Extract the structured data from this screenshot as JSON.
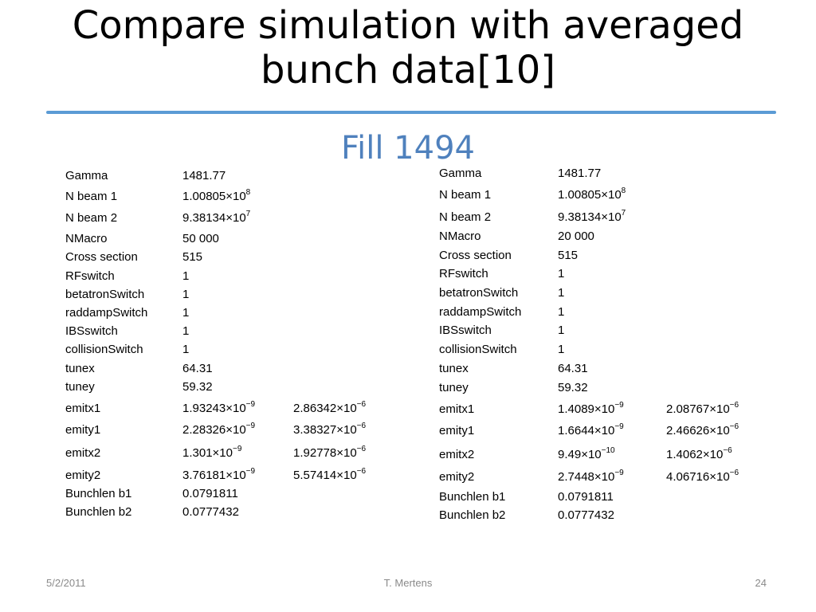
{
  "slide": {
    "title_line1": "Compare simulation with averaged",
    "title_line2": "bunch data[10]",
    "subtitle": "Fill 1494"
  },
  "left_table": [
    {
      "label": "Gamma",
      "v1": "1481.77",
      "v1_sup": "",
      "v2": "",
      "v2_sup": ""
    },
    {
      "label": "N beam 1",
      "v1": "1.00805×10",
      "v1_sup": "8",
      "v2": "",
      "v2_sup": ""
    },
    {
      "label": "N beam 2",
      "v1": "9.38134×10",
      "v1_sup": "7",
      "v2": "",
      "v2_sup": ""
    },
    {
      "label": "NMacro",
      "v1": "50 000",
      "v1_sup": "",
      "v2": "",
      "v2_sup": ""
    },
    {
      "label": "Cross section",
      "v1": "515",
      "v1_sup": "",
      "v2": "",
      "v2_sup": ""
    },
    {
      "label": "RFswitch",
      "v1": "1",
      "v1_sup": "",
      "v2": "",
      "v2_sup": ""
    },
    {
      "label": "betatronSwitch",
      "v1": "1",
      "v1_sup": "",
      "v2": "",
      "v2_sup": ""
    },
    {
      "label": "raddampSwitch",
      "v1": "1",
      "v1_sup": "",
      "v2": "",
      "v2_sup": ""
    },
    {
      "label": "IBSswitch",
      "v1": "1",
      "v1_sup": "",
      "v2": "",
      "v2_sup": ""
    },
    {
      "label": "collisionSwitch",
      "v1": "1",
      "v1_sup": "",
      "v2": "",
      "v2_sup": ""
    },
    {
      "label": "tunex",
      "v1": "64.31",
      "v1_sup": "",
      "v2": "",
      "v2_sup": ""
    },
    {
      "label": "tuney",
      "v1": "59.32",
      "v1_sup": "",
      "v2": "",
      "v2_sup": ""
    },
    {
      "label": "emitx1",
      "v1": "1.93243×10",
      "v1_sup": "−9",
      "v2": "2.86342×10",
      "v2_sup": "−6"
    },
    {
      "label": "emity1",
      "v1": "2.28326×10",
      "v1_sup": "−9",
      "v2": "3.38327×10",
      "v2_sup": "−6"
    },
    {
      "label": "emitx2",
      "v1": "1.301×10",
      "v1_sup": "−9",
      "v2": "1.92778×10",
      "v2_sup": "−6"
    },
    {
      "label": "emity2",
      "v1": "3.76181×10",
      "v1_sup": "−9",
      "v2": "5.57414×10",
      "v2_sup": "−6"
    },
    {
      "label": "Bunchlen b1",
      "v1": "0.0791811",
      "v1_sup": "",
      "v2": "",
      "v2_sup": ""
    },
    {
      "label": "Bunchlen b2",
      "v1": "0.0777432",
      "v1_sup": "",
      "v2": "",
      "v2_sup": ""
    }
  ],
  "right_table": [
    {
      "label": "Gamma",
      "v1": "1481.77",
      "v1_sup": "",
      "v2": "",
      "v2_sup": ""
    },
    {
      "label": "N beam 1",
      "v1": "1.00805×10",
      "v1_sup": "8",
      "v2": "",
      "v2_sup": ""
    },
    {
      "label": "N beam 2",
      "v1": "9.38134×10",
      "v1_sup": "7",
      "v2": "",
      "v2_sup": ""
    },
    {
      "label": "NMacro",
      "v1": "20 000",
      "v1_sup": "",
      "v2": "",
      "v2_sup": ""
    },
    {
      "label": "Cross section",
      "v1": "515",
      "v1_sup": "",
      "v2": "",
      "v2_sup": ""
    },
    {
      "label": "RFswitch",
      "v1": "1",
      "v1_sup": "",
      "v2": "",
      "v2_sup": ""
    },
    {
      "label": "betatronSwitch",
      "v1": "1",
      "v1_sup": "",
      "v2": "",
      "v2_sup": ""
    },
    {
      "label": "raddampSwitch",
      "v1": "1",
      "v1_sup": "",
      "v2": "",
      "v2_sup": ""
    },
    {
      "label": "IBSswitch",
      "v1": "1",
      "v1_sup": "",
      "v2": "",
      "v2_sup": ""
    },
    {
      "label": "collisionSwitch",
      "v1": "1",
      "v1_sup": "",
      "v2": "",
      "v2_sup": ""
    },
    {
      "label": "tunex",
      "v1": "64.31",
      "v1_sup": "",
      "v2": "",
      "v2_sup": ""
    },
    {
      "label": "tuney",
      "v1": "59.32",
      "v1_sup": "",
      "v2": "",
      "v2_sup": ""
    },
    {
      "label": "emitx1",
      "v1": "1.4089×10",
      "v1_sup": "−9",
      "v2": "2.08767×10",
      "v2_sup": "−6"
    },
    {
      "label": "emity1",
      "v1": "1.6644×10",
      "v1_sup": "−9",
      "v2": "2.46626×10",
      "v2_sup": "−6"
    },
    {
      "label": "emitx2",
      "v1": "9.49×10",
      "v1_sup": "−10",
      "v2": "1.4062×10",
      "v2_sup": "−6"
    },
    {
      "label": "emity2",
      "v1": "2.7448×10",
      "v1_sup": "−9",
      "v2": "4.06716×10",
      "v2_sup": "−6"
    },
    {
      "label": "Bunchlen b1",
      "v1": "0.0791811",
      "v1_sup": "",
      "v2": "",
      "v2_sup": ""
    },
    {
      "label": "Bunchlen b2",
      "v1": "0.0777432",
      "v1_sup": "",
      "v2": "",
      "v2_sup": ""
    }
  ],
  "footer": {
    "date": "5/2/2011",
    "author": "T. Mertens",
    "page": "24"
  },
  "colors": {
    "accent_rule": "#5b9bd5",
    "subtitle": "#4f81bd",
    "footer_text": "#8a8a8a"
  }
}
